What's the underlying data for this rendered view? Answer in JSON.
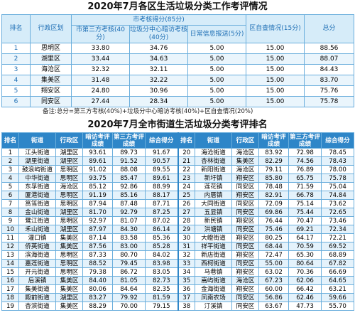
{
  "table1": {
    "title": "2020年7月各区生活垃圾分类工作考评情况",
    "headers": {
      "rank": "排名",
      "district": "行政区划",
      "group": "市考核得分(85分)",
      "sub": [
        "市第三方考核(40分)",
        "垃圾分中心暗访考核(40分)",
        "日常信息报送(5分)"
      ],
      "self": "区自查情况(15分)",
      "total": "总分"
    },
    "rows": [
      [
        "1",
        "思明区",
        "33.80",
        "34.76",
        "5.00",
        "15.00",
        "88.56"
      ],
      [
        "2",
        "湖里区",
        "33.44",
        "34.63",
        "5.00",
        "15.00",
        "88.07"
      ],
      [
        "3",
        "海沧区",
        "32.32",
        "32.11",
        "5.00",
        "15.00",
        "84.43"
      ],
      [
        "4",
        "集美区",
        "31.48",
        "32.22",
        "5.00",
        "15.00",
        "83.70"
      ],
      [
        "5",
        "翔安区",
        "24.80",
        "30.96",
        "5.00",
        "15.00",
        "75.76"
      ],
      [
        "6",
        "同安区",
        "27.44",
        "28.34",
        "5.00",
        "15.00",
        "75.78"
      ]
    ],
    "note": "备注:总分=第三方考核(40%)+垃圾分中心暗访考核(40%)+区自查情况(20%)"
  },
  "table2": {
    "title": "2020年7月全市街道生活垃圾分类考评排名",
    "headers": [
      "排名",
      "街道",
      "行政区",
      "暗访考评成绩",
      "第三方考评成绩",
      "综合得分"
    ],
    "left_rows": [
      [
        "1",
        "江头街道",
        "湖里区",
        "93.61",
        "89.73",
        "91.67"
      ],
      [
        "2",
        "湖里街道",
        "湖里区",
        "89.61",
        "91.52",
        "90.57"
      ],
      [
        "3",
        "鼓浪屿街道",
        "思明区",
        "91.02",
        "88.08",
        "89.55"
      ],
      [
        "4",
        "中华街道",
        "思明区",
        "93.75",
        "85.47",
        "89.61"
      ],
      [
        "5",
        "东孚街道",
        "海沧区",
        "85.12",
        "92.86",
        "88.99"
      ],
      [
        "6",
        "厦港街道",
        "思明区",
        "91.19",
        "85.16",
        "88.17"
      ],
      [
        "7",
        "筼筜街道",
        "思明区",
        "87.94",
        "87.48",
        "87.71"
      ],
      [
        "8",
        "金山街道",
        "湖里区",
        "81.70",
        "92.79",
        "87.25"
      ],
      [
        "9",
        "鹭江街道",
        "思明区",
        "92.97",
        "81.07",
        "87.02"
      ],
      [
        "10",
        "禾山街道",
        "湖里区",
        "87.97",
        "84.30",
        "86.14"
      ],
      [
        "11",
        "灌口镇",
        "集美区",
        "87.14",
        "83.58",
        "85.36"
      ],
      [
        "12",
        "侨英街道",
        "集美区",
        "87.56",
        "83.00",
        "85.28"
      ],
      [
        "13",
        "滨海街道",
        "思明区",
        "87.33",
        "80.70",
        "84.02"
      ],
      [
        "14",
        "嘉莲街道",
        "思明区",
        "88.52",
        "79.45",
        "83.98"
      ],
      [
        "15",
        "开元街道",
        "思明区",
        "79.38",
        "86.72",
        "83.05"
      ],
      [
        "16",
        "后溪镇",
        "集美区",
        "84.40",
        "81.05",
        "82.73"
      ],
      [
        "17",
        "集美街道",
        "集美区",
        "80.06",
        "84.64",
        "82.35"
      ],
      [
        "18",
        "殿前街道",
        "湖里区",
        "83.27",
        "79.92",
        "81.59"
      ],
      [
        "19",
        "杏滨街道",
        "集美区",
        "88.29",
        "70.00",
        "79.15"
      ]
    ],
    "right_rows": [
      [
        "20",
        "海沧街道",
        "海沧区",
        "83.92",
        "72.98",
        "78.45"
      ],
      [
        "21",
        "杏林街道",
        "集美区",
        "82.29",
        "74.56",
        "78.43"
      ],
      [
        "22",
        "新阳街道",
        "海沧区",
        "79.11",
        "76.89",
        "78.00"
      ],
      [
        "23",
        "新圩镇",
        "翔安区",
        "85.80",
        "65.75",
        "75.78"
      ],
      [
        "24",
        "莲花镇",
        "同安区",
        "78.48",
        "71.59",
        "75.04"
      ],
      [
        "25",
        "内厝镇",
        "翔安区",
        "82.91",
        "66.78",
        "74.84"
      ],
      [
        "26",
        "大同街道",
        "同安区",
        "72.09",
        "75.14",
        "73.62"
      ],
      [
        "27",
        "五显镇",
        "同安区",
        "69.86",
        "75.44",
        "72.65"
      ],
      [
        "28",
        "新民镇",
        "翔安区",
        "76.44",
        "70.47",
        "73.46"
      ],
      [
        "29",
        "洪塘镇",
        "同安区",
        "75.46",
        "69.21",
        "72.34"
      ],
      [
        "30",
        "大嶝街道",
        "翔安区",
        "80.25",
        "64.17",
        "72.21"
      ],
      [
        "31",
        "祥平街道",
        "同安区",
        "68.44",
        "70.59",
        "69.52"
      ],
      [
        "32",
        "新店街道",
        "翔安区",
        "72.47",
        "65.30",
        "68.89"
      ],
      [
        "33",
        "西柯街道",
        "同安区",
        "55.00",
        "80.64",
        "67.82"
      ],
      [
        "34",
        "马巷镇",
        "翔安区",
        "63.02",
        "70.36",
        "66.69"
      ],
      [
        "35",
        "嵩屿街道",
        "海沧区",
        "67.23",
        "62.06",
        "64.65"
      ],
      [
        "36",
        "金海街道",
        "翔安区",
        "60.00",
        "66.42",
        "63.21"
      ],
      [
        "37",
        "凤南农场",
        "同安区",
        "56.86",
        "62.46",
        "59.66"
      ],
      [
        "38",
        "汀溪镇",
        "同安区",
        "63.67",
        "47.73",
        "55.70"
      ]
    ]
  }
}
